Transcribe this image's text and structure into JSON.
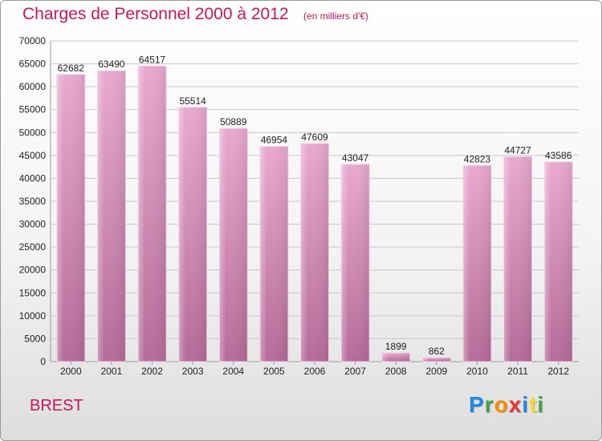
{
  "header": {
    "title": "Charges de Personnel 2000 à 2012",
    "subtitle": "(en milliers d'€)"
  },
  "footer": {
    "city": "BREST",
    "brand_letters": [
      {
        "ch": "P",
        "color": "#1e88e5"
      },
      {
        "ch": "r",
        "color": "#43a047"
      },
      {
        "ch": "o",
        "color": "#fb8c00"
      },
      {
        "ch": "x",
        "color": "#e53935"
      },
      {
        "ch": "i",
        "color": "#1e88e5"
      },
      {
        "ch": "t",
        "color": "#fdd835"
      },
      {
        "ch": "i",
        "color": "#43a047"
      }
    ]
  },
  "chart_data": {
    "type": "bar",
    "title": "Charges de Personnel 2000 à 2012",
    "subtitle": "(en milliers d'€)",
    "categories": [
      "2000",
      "2001",
      "2002",
      "2003",
      "2004",
      "2005",
      "2006",
      "2007",
      "2008",
      "2009",
      "2010",
      "2011",
      "2012"
    ],
    "values": [
      62682,
      63490,
      64517,
      55514,
      50889,
      46954,
      47609,
      43047,
      1899,
      862,
      42823,
      44727,
      43586
    ],
    "ylim": [
      0,
      70000
    ],
    "yticks": [
      0,
      5000,
      10000,
      15000,
      20000,
      25000,
      30000,
      35000,
      40000,
      45000,
      50000,
      55000,
      60000,
      65000,
      70000
    ],
    "grid": true,
    "bar_color": "#d88fb8"
  }
}
